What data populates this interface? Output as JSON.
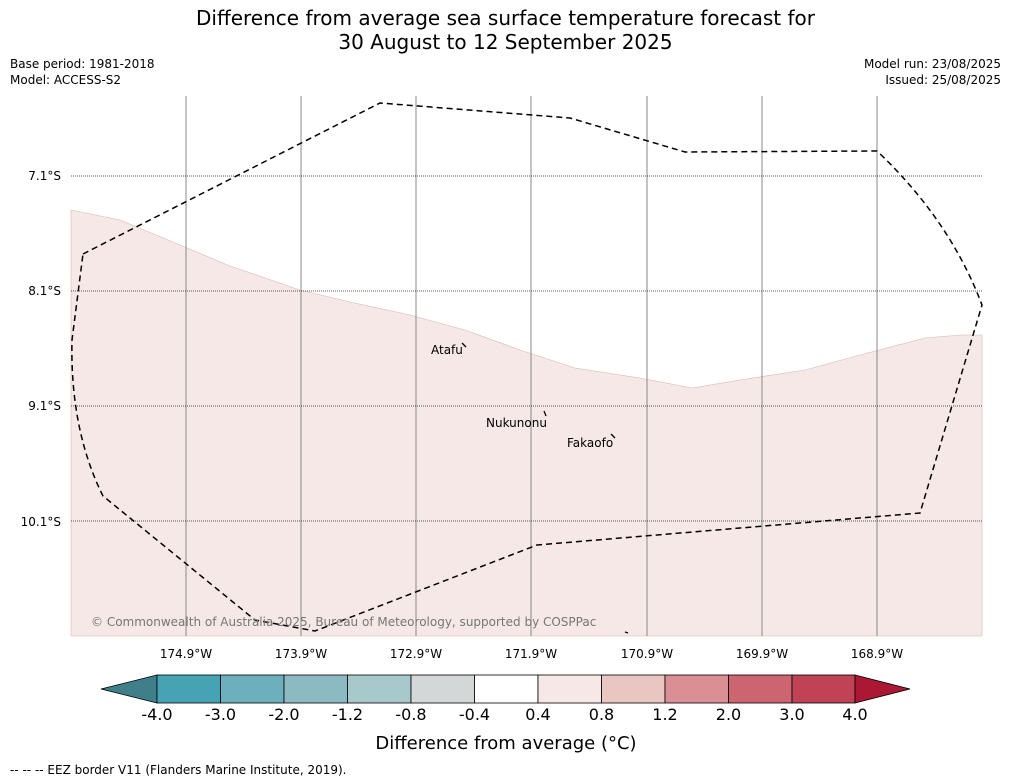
{
  "title": "Difference from average sea surface temperature forecast for\n30 August to 12 September 2025",
  "base_period": "Base period: 1981-2018",
  "model": "Model: ACCESS-S2",
  "model_run": "Model run: 23/08/2025",
  "issued": "Issued: 25/08/2025",
  "lat_labels": [
    "7.1°S",
    "8.1°S",
    "9.1°S",
    "10.1°S"
  ],
  "lon_labels": [
    "174.9°W",
    "173.9°W",
    "172.9°W",
    "171.9°W",
    "170.9°W",
    "169.9°W",
    "168.9°W"
  ],
  "places": [
    "Atafu",
    "Nukunonu",
    "Fakaofo"
  ],
  "copyright": "© Commonwealth of Australia 2025, Bureau of Meteorology, supported by COSPPac",
  "colorbar": {
    "title": "Difference from average (°C)",
    "ticks": [
      "-4.0",
      "-3.0",
      "-2.0",
      "-1.2",
      "-0.8",
      "-0.4",
      "0.4",
      "0.8",
      "1.2",
      "2.0",
      "3.0",
      "4.0"
    ],
    "colors": [
      "#3e7f8a",
      "#45a3b3",
      "#6cb0bd",
      "#8cbac3",
      "#a8c9cc",
      "#d3d7d7",
      "#ffffff",
      "#f6e8e6",
      "#e9c6c2",
      "#d98f94",
      "#cd6570",
      "#bf4354",
      "#ac1834"
    ]
  },
  "fill_color": "#f5e8e6",
  "footer": "--  --  -- EEZ border V11 (Flanders Marine Institute, 2019)."
}
